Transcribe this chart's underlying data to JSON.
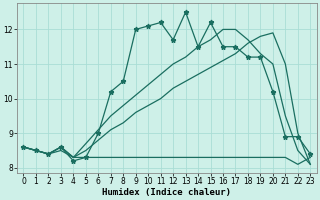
{
  "xlabel": "Humidex (Indice chaleur)",
  "bg_color": "#cef0e8",
  "grid_color": "#aaddd5",
  "line_color": "#1a6e60",
  "xlim": [
    -0.5,
    23.5
  ],
  "ylim": [
    7.85,
    12.75
  ],
  "yticks": [
    8,
    9,
    10,
    11,
    12
  ],
  "xticks": [
    0,
    1,
    2,
    3,
    4,
    5,
    6,
    7,
    8,
    9,
    10,
    11,
    12,
    13,
    14,
    15,
    16,
    17,
    18,
    19,
    20,
    21,
    22,
    23
  ],
  "flat_y": [
    8.6,
    8.5,
    8.4,
    8.5,
    8.3,
    8.3,
    8.3,
    8.3,
    8.3,
    8.3,
    8.3,
    8.3,
    8.3,
    8.3,
    8.3,
    8.3,
    8.3,
    8.3,
    8.3,
    8.3,
    8.3,
    8.3,
    8.1,
    8.3
  ],
  "diag_lo_y": [
    8.6,
    8.5,
    8.4,
    8.6,
    8.3,
    8.5,
    8.8,
    9.1,
    9.3,
    9.6,
    9.8,
    10.0,
    10.3,
    10.5,
    10.7,
    10.9,
    11.1,
    11.3,
    11.6,
    11.8,
    11.9,
    11.0,
    9.0,
    8.1
  ],
  "diag_hi_y": [
    8.6,
    8.5,
    8.4,
    8.6,
    8.3,
    8.7,
    9.1,
    9.5,
    9.8,
    10.1,
    10.4,
    10.7,
    11.0,
    11.2,
    11.5,
    11.7,
    12.0,
    12.0,
    11.7,
    11.3,
    11.0,
    9.5,
    8.5,
    8.1
  ],
  "spiky_y": [
    8.6,
    8.5,
    8.4,
    8.6,
    8.2,
    8.3,
    9.0,
    10.2,
    10.5,
    12.0,
    12.1,
    12.2,
    11.7,
    12.5,
    11.5,
    12.2,
    11.5,
    11.5,
    11.2,
    11.2,
    10.2,
    8.9,
    8.9,
    8.4
  ]
}
